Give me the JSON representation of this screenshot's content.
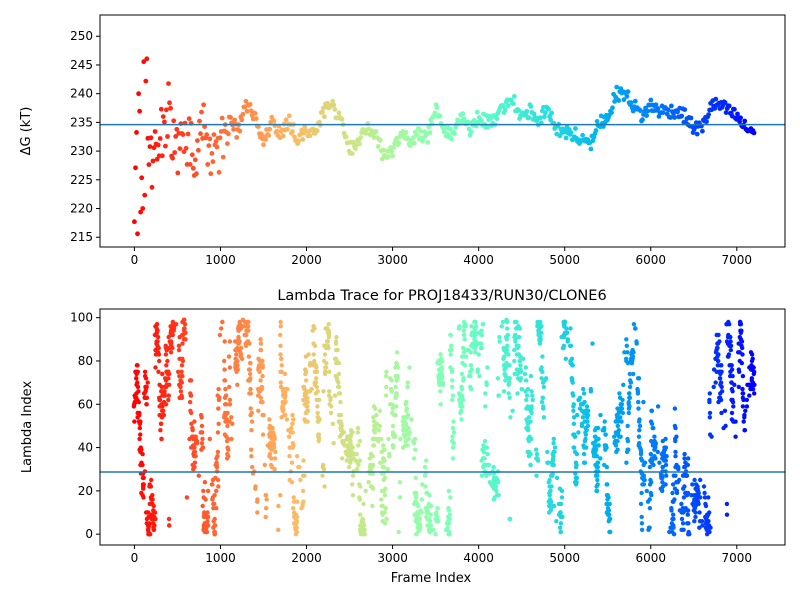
{
  "chart_data": [
    {
      "type": "scatter",
      "title": "",
      "xlabel": "",
      "ylabel": "ΔG (kT)",
      "xlim": [
        -400,
        7560
      ],
      "ylim": [
        213.3,
        253.7
      ],
      "xticks": [
        0,
        1000,
        2000,
        3000,
        4000,
        5000,
        6000,
        7000
      ],
      "yticks": [
        215,
        220,
        225,
        230,
        235,
        240,
        245,
        250
      ],
      "grid": false,
      "reference_line": {
        "y": 234.6,
        "color": "#1f77b4"
      },
      "colormap": "rainbow (red at early frames → violet at late frames)",
      "frames": [
        0,
        7200
      ],
      "trace": [
        [
          0,
          230
        ],
        [
          50,
          225
        ],
        [
          100,
          236
        ],
        [
          200,
          228
        ],
        [
          300,
          232
        ],
        [
          400,
          235
        ],
        [
          500,
          229
        ],
        [
          600,
          233
        ],
        [
          700,
          228
        ],
        [
          800,
          235
        ],
        [
          900,
          229
        ],
        [
          1000,
          231
        ],
        [
          1100,
          237
        ],
        [
          1200,
          233
        ],
        [
          1300,
          238
        ],
        [
          1400,
          236
        ],
        [
          1500,
          232
        ],
        [
          1600,
          235
        ],
        [
          1700,
          233
        ],
        [
          1800,
          235
        ],
        [
          1900,
          232
        ],
        [
          2000,
          234
        ],
        [
          2100,
          233
        ],
        [
          2200,
          237
        ],
        [
          2300,
          238
        ],
        [
          2400,
          235
        ],
        [
          2500,
          230
        ],
        [
          2600,
          232
        ],
        [
          2700,
          234
        ],
        [
          2800,
          233
        ],
        [
          2900,
          229
        ],
        [
          3000,
          230
        ],
        [
          3100,
          233
        ],
        [
          3200,
          232
        ],
        [
          3300,
          233
        ],
        [
          3400,
          232
        ],
        [
          3500,
          238
        ],
        [
          3600,
          234
        ],
        [
          3700,
          233
        ],
        [
          3800,
          236
        ],
        [
          3900,
          234
        ],
        [
          4000,
          236
        ],
        [
          4100,
          235
        ],
        [
          4200,
          235
        ],
        [
          4300,
          238
        ],
        [
          4400,
          239
        ],
        [
          4500,
          236
        ],
        [
          4600,
          237
        ],
        [
          4700,
          235
        ],
        [
          4800,
          238
        ],
        [
          4900,
          234
        ],
        [
          5000,
          233
        ],
        [
          5100,
          233
        ],
        [
          5200,
          232
        ],
        [
          5300,
          231
        ],
        [
          5400,
          235
        ],
        [
          5500,
          236
        ],
        [
          5600,
          240
        ],
        [
          5700,
          240
        ],
        [
          5800,
          238
        ],
        [
          5900,
          236
        ],
        [
          6000,
          238
        ],
        [
          6100,
          237
        ],
        [
          6200,
          237
        ],
        [
          6300,
          237
        ],
        [
          6400,
          236
        ],
        [
          6500,
          234
        ],
        [
          6600,
          234
        ],
        [
          6700,
          238
        ],
        [
          6800,
          238
        ],
        [
          6900,
          237
        ],
        [
          7000,
          236
        ],
        [
          7100,
          234
        ],
        [
          7200,
          233.5
        ]
      ]
    },
    {
      "type": "scatter",
      "title": "Lambda Trace for PROJ18433/RUN30/CLONE6",
      "xlabel": "Frame Index",
      "ylabel": "Lambda Index",
      "xlim": [
        -400,
        7560
      ],
      "ylim": [
        -5,
        104
      ],
      "xticks": [
        0,
        1000,
        2000,
        3000,
        4000,
        5000,
        6000,
        7000
      ],
      "yticks": [
        0,
        20,
        40,
        60,
        80,
        100
      ],
      "grid": false,
      "reference_line": {
        "y": 28.7,
        "color": "#1f77b4"
      },
      "colormap": "rainbow (red at early frames → violet at late frames)",
      "frames": [
        0,
        7200
      ],
      "lambda_range": [
        0,
        99
      ]
    }
  ]
}
